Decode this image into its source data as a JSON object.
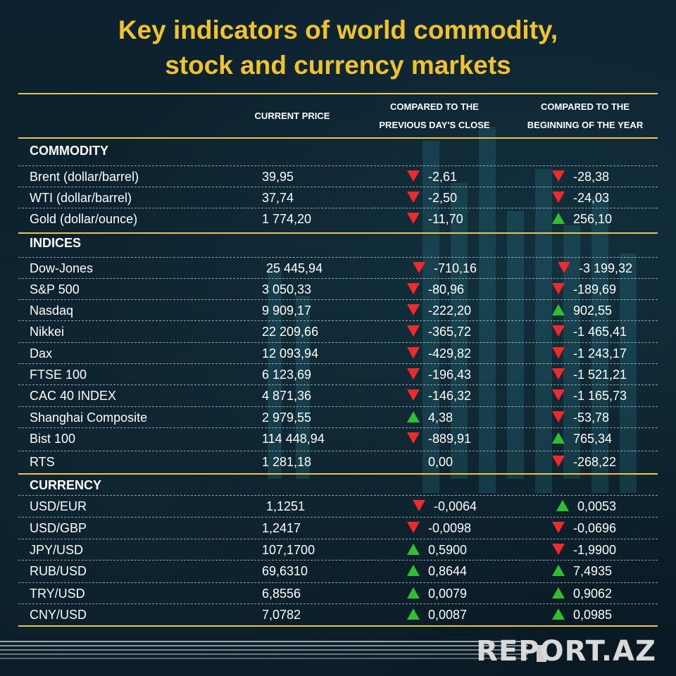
{
  "title": {
    "line1": "Key indicators of world commodity,",
    "line2": "stock and currency markets"
  },
  "headers": {
    "current": "CURRENT PRICE",
    "prev_line1": "COMPARED TO THE",
    "prev_line2": "PREVIOUS DAY'S CLOSE",
    "year_line1": "COMPARED TO THE",
    "year_line2": "BEGINNING OF THE YEAR"
  },
  "colors": {
    "gold": "#f2c12e",
    "down": "#ee2a2a",
    "up": "#2fbf2f"
  },
  "sections": {
    "commodity": {
      "title": "COMMODITY",
      "rows": [
        {
          "name": "Brent (dollar/barrel)",
          "price": "39,95",
          "prev": "-2,61",
          "prev_dir": "down",
          "year": "-28,38",
          "year_dir": "down"
        },
        {
          "name": "WTI (dollar/barrel)",
          "price": "37,74",
          "prev": "-2,50",
          "prev_dir": "down",
          "year": "-24,03",
          "year_dir": "down"
        },
        {
          "name": "Gold (dollar/ounce)",
          "price": "1 774,20",
          "prev": "-11,70",
          "prev_dir": "down",
          "year": "256,10",
          "year_dir": "up"
        }
      ]
    },
    "indices": {
      "title": "INDICES",
      "rows": [
        {
          "name": "Dow-Jones",
          "price": "25 445,94",
          "prev": "-710,16",
          "prev_dir": "down",
          "year": "-3 199,32",
          "year_dir": "down"
        },
        {
          "name": "S&P 500",
          "price": "3 050,33",
          "prev": "-80,96",
          "prev_dir": "down",
          "year": "-189,69",
          "year_dir": "down"
        },
        {
          "name": "Nasdaq",
          "price": "9 909,17",
          "prev": "-222,20",
          "prev_dir": "down",
          "year": "902,55",
          "year_dir": "up"
        },
        {
          "name": "Nikkei",
          "price": "22 209,66",
          "prev": "-365,72",
          "prev_dir": "down",
          "year": "-1 465,41",
          "year_dir": "down"
        },
        {
          "name": "Dax",
          "price": "12 093,94",
          "prev": "-429,82",
          "prev_dir": "down",
          "year": "-1 243,17",
          "year_dir": "down"
        },
        {
          "name": "FTSE 100",
          "price": "6 123,69",
          "prev": "-196,43",
          "prev_dir": "down",
          "year": "-1 521,21",
          "year_dir": "down"
        },
        {
          "name": "CAC 40 INDEX",
          "price": "4 871,36",
          "prev": "-146,32",
          "prev_dir": "down",
          "year": "-1 165,73",
          "year_dir": "down"
        },
        {
          "name": "Shanghai Composite",
          "price": "2 979,55",
          "prev": "4,38",
          "prev_dir": "up",
          "year": "-53,78",
          "year_dir": "down"
        },
        {
          "name": "Bist 100",
          "price": "114 448,94",
          "prev": "-889,91",
          "prev_dir": "down",
          "year": "765,34",
          "year_dir": "up"
        },
        {
          "name": "RTS",
          "price": "1 281,18",
          "prev": "0,00",
          "prev_dir": "none",
          "year": "-268,22",
          "year_dir": "down"
        }
      ]
    },
    "currency": {
      "title": "CURRENCY",
      "rows": [
        {
          "name": "USD/EUR",
          "price": "1,1251",
          "prev": "-0,0064",
          "prev_dir": "down",
          "year": "0,0053",
          "year_dir": "up"
        },
        {
          "name": "USD/GBP",
          "price": "1,2417",
          "prev": "-0,0098",
          "prev_dir": "down",
          "year": "-0,0696",
          "year_dir": "down"
        },
        {
          "name": "JPY/USD",
          "price": "107,1700",
          "prev": "0,5900",
          "prev_dir": "up",
          "year": "-1,9900",
          "year_dir": "down"
        },
        {
          "name": "RUB/USD",
          "price": "69,6310",
          "prev": "0,8644",
          "prev_dir": "up",
          "year": "7,4935",
          "year_dir": "up"
        },
        {
          "name": "TRY/USD",
          "price": "6,8556",
          "prev": "0,0079",
          "prev_dir": "up",
          "year": "0,9062",
          "year_dir": "up"
        },
        {
          "name": "CNY/USD",
          "price": "7,0782",
          "prev": "0,0087",
          "prev_dir": "up",
          "year": "0,0985",
          "year_dir": "up"
        }
      ]
    }
  },
  "footer": {
    "logo": "REPORT.AZ"
  }
}
